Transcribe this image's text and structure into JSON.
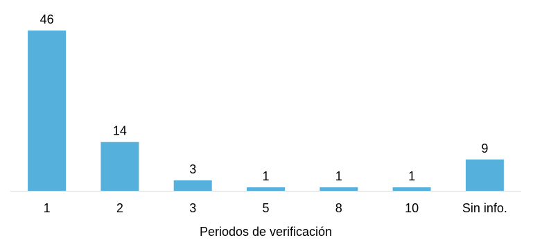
{
  "chart_data": {
    "type": "bar",
    "categories": [
      "1",
      "2",
      "3",
      "5",
      "8",
      "10",
      "Sin info."
    ],
    "values": [
      46,
      14,
      3,
      1,
      1,
      1,
      9
    ],
    "title": "",
    "xlabel": "Periodos de verificación",
    "ylabel": "",
    "ylim": [
      0,
      46
    ],
    "grid": false,
    "data_labels": true,
    "bar_color": "#56B0DC",
    "axis_color": "#D9D9D9"
  }
}
